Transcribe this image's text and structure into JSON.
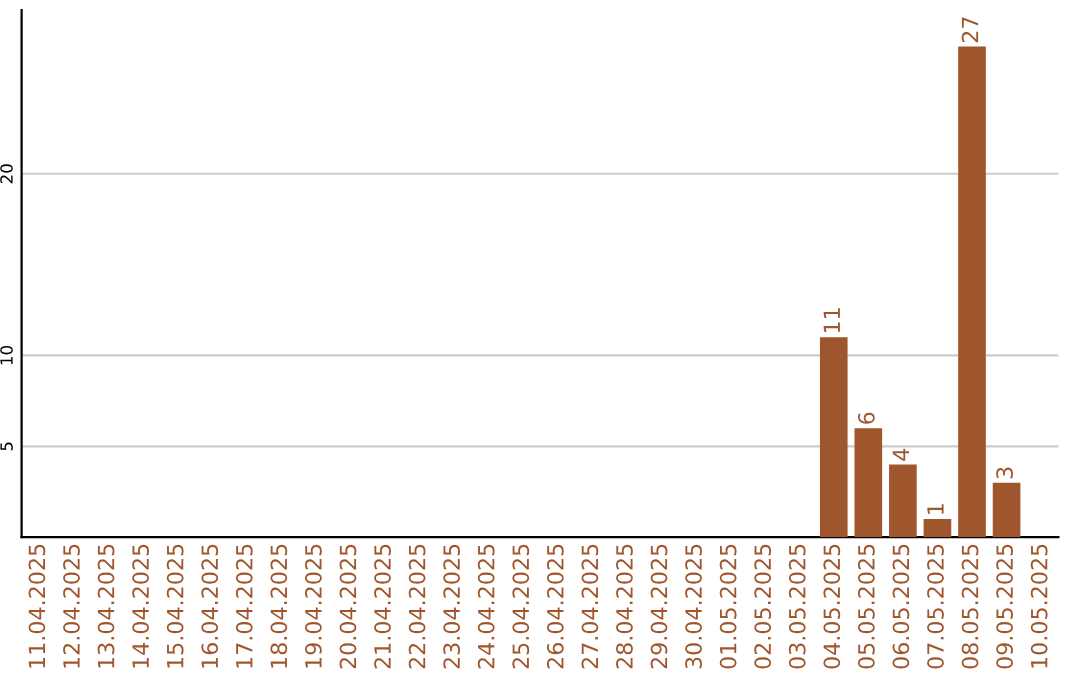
{
  "chart_data": {
    "type": "bar",
    "categories": [
      "11.04.2025",
      "12.04.2025",
      "13.04.2025",
      "14.04.2025",
      "15.04.2025",
      "16.04.2025",
      "17.04.2025",
      "18.04.2025",
      "19.04.2025",
      "20.04.2025",
      "21.04.2025",
      "22.04.2025",
      "23.04.2025",
      "24.04.2025",
      "25.04.2025",
      "26.04.2025",
      "27.04.2025",
      "28.04.2025",
      "29.04.2025",
      "30.04.2025",
      "01.05.2025",
      "02.05.2025",
      "03.05.2025",
      "04.05.2025",
      "05.05.2025",
      "06.05.2025",
      "07.05.2025",
      "08.05.2025",
      "09.05.2025",
      "10.05.2025"
    ],
    "values": [
      null,
      null,
      null,
      null,
      null,
      null,
      null,
      null,
      null,
      null,
      null,
      null,
      null,
      null,
      null,
      null,
      null,
      null,
      null,
      null,
      null,
      null,
      null,
      11,
      6,
      4,
      1,
      27,
      3,
      null
    ],
    "color": "#a0562c",
    "data_labels": true,
    "ylim": [
      0,
      29
    ],
    "yticks": [
      5,
      10,
      20
    ],
    "grid": "y"
  }
}
